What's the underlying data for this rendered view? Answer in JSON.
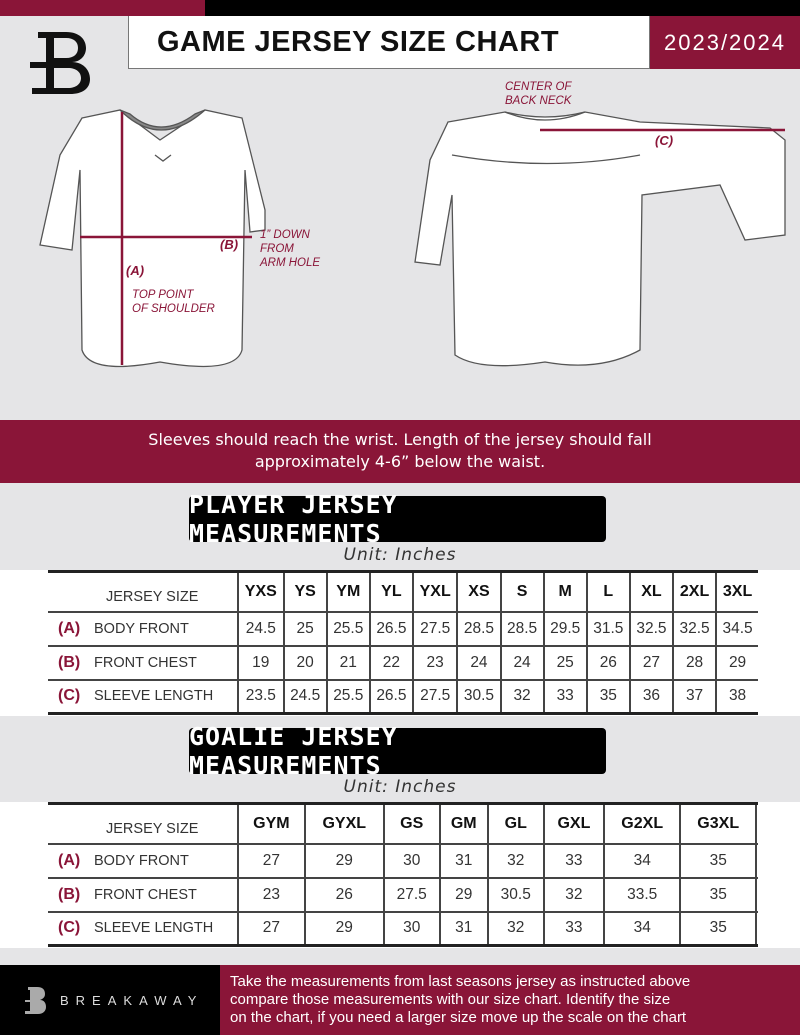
{
  "header": {
    "title": "GAME JERSEY SIZE CHART",
    "season": "2023/2024",
    "logo_letter": "B"
  },
  "diagram": {
    "label_a": "(A)",
    "label_b": "(B)",
    "label_c": "(C)",
    "top_point": [
      "TOP POINT",
      "OF SHOULDER"
    ],
    "arm_hole": [
      "1” DOWN",
      "FROM",
      "ARM HOLE"
    ],
    "back_neck": [
      "CENTER OF",
      "BACK NECK"
    ]
  },
  "note": [
    "Sleeves should reach the wrist. Length of the jersey should fall",
    "approximately 4-6” below the waist."
  ],
  "player": {
    "title": "PLAYER JERSEY MEASUREMENTS",
    "unit": "Unit: Inches",
    "size_label": "JERSEY SIZE",
    "sizes": [
      "YXS",
      "YS",
      "YM",
      "YL",
      "YXL",
      "XS",
      "S",
      "M",
      "L",
      "XL",
      "2XL",
      "3XL"
    ],
    "rows": [
      {
        "letter": "(A)",
        "name": "BODY FRONT",
        "values": [
          "24.5",
          "25",
          "25.5",
          "26.5",
          "27.5",
          "28.5",
          "28.5",
          "29.5",
          "31.5",
          "32.5",
          "32.5",
          "34.5"
        ]
      },
      {
        "letter": "(B)",
        "name": "FRONT CHEST",
        "values": [
          "19",
          "20",
          "21",
          "22",
          "23",
          "24",
          "24",
          "25",
          "26",
          "27",
          "28",
          "29"
        ]
      },
      {
        "letter": "(C)",
        "name": "SLEEVE LENGTH",
        "values": [
          "23.5",
          "24.5",
          "25.5",
          "26.5",
          "27.5",
          "30.5",
          "32",
          "33",
          "35",
          "36",
          "37",
          "38"
        ]
      }
    ]
  },
  "goalie": {
    "title": "GOALIE JERSEY MEASUREMENTS",
    "unit": "Unit: Inches",
    "size_label": "JERSEY SIZE",
    "sizes": [
      "GYM",
      "GYXL",
      "GS",
      "GM",
      "GL",
      "GXL",
      "G2XL",
      "G3XL",
      ""
    ],
    "rows": [
      {
        "letter": "(A)",
        "name": "BODY FRONT",
        "values": [
          "27",
          "29",
          "30",
          "31",
          "32",
          "33",
          "34",
          "35",
          ""
        ]
      },
      {
        "letter": "(B)",
        "name": "FRONT CHEST",
        "values": [
          "23",
          "26",
          "27.5",
          "29",
          "30.5",
          "32",
          "33.5",
          "35",
          ""
        ]
      },
      {
        "letter": "(C)",
        "name": "SLEEVE LENGTH",
        "values": [
          "27",
          "29",
          "30",
          "31",
          "32",
          "33",
          "34",
          "35",
          ""
        ]
      }
    ]
  },
  "footer": {
    "brand": "BREAKAWAY",
    "text": [
      "Take the measurements from last seasons jersey as instructed above",
      "compare those measurements  with our size chart. Identify the size",
      "on the chart, if you need a larger size move up the scale on the chart"
    ]
  },
  "colors": {
    "accent": "#8a1538",
    "background": "#e5e5e7"
  }
}
